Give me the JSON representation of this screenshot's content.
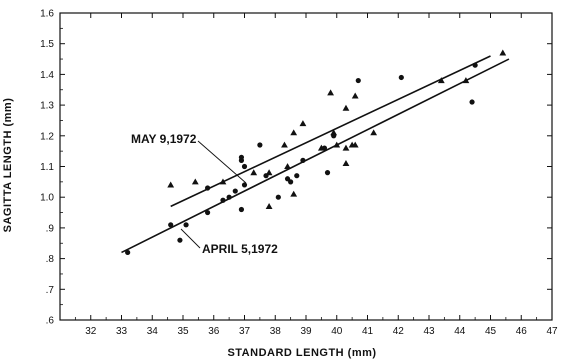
{
  "chart_data": {
    "type": "scatter",
    "title": "",
    "xlabel": "STANDARD LENGTH (mm)",
    "ylabel": "SAGITTA LENGTH (mm)",
    "xlim": [
      31,
      47
    ],
    "ylim": [
      0.6,
      1.6
    ],
    "xticks": [
      32,
      33,
      34,
      35,
      36,
      37,
      38,
      39,
      40,
      41,
      42,
      43,
      44,
      45,
      46,
      47
    ],
    "yticks": [
      0.6,
      0.7,
      0.8,
      0.9,
      1.0,
      1.1,
      1.2,
      1.3,
      1.4,
      1.5,
      1.6
    ],
    "ytick_labels": [
      ".6",
      ".7",
      ".8",
      ".9",
      "1.0",
      "1.1",
      "1.2",
      "1.3",
      "1.4",
      "1.5",
      "1.6"
    ],
    "grid": false,
    "series": [
      {
        "name": "APRIL 5, 1972",
        "marker": "circle",
        "points": [
          [
            33.2,
            0.82
          ],
          [
            34.6,
            0.91
          ],
          [
            34.9,
            0.86
          ],
          [
            35.1,
            0.91
          ],
          [
            35.8,
            0.95
          ],
          [
            35.8,
            1.03
          ],
          [
            36.3,
            0.99
          ],
          [
            36.5,
            1.0
          ],
          [
            36.7,
            1.02
          ],
          [
            36.9,
            0.96
          ],
          [
            36.9,
            1.12
          ],
          [
            36.9,
            1.13
          ],
          [
            37.0,
            1.04
          ],
          [
            37.0,
            1.1
          ],
          [
            37.5,
            1.17
          ],
          [
            37.7,
            1.07
          ],
          [
            38.1,
            1.0
          ],
          [
            38.4,
            1.06
          ],
          [
            38.5,
            1.05
          ],
          [
            38.7,
            1.07
          ],
          [
            38.9,
            1.12
          ],
          [
            39.6,
            1.16
          ],
          [
            39.7,
            1.08
          ],
          [
            39.9,
            1.2
          ],
          [
            40.7,
            1.38
          ],
          [
            42.1,
            1.39
          ],
          [
            44.4,
            1.31
          ],
          [
            44.5,
            1.43
          ]
        ],
        "fit": [
          [
            33.0,
            0.82
          ],
          [
            45.6,
            1.45
          ]
        ]
      },
      {
        "name": "MAY 9, 1972",
        "marker": "triangle",
        "points": [
          [
            34.6,
            1.04
          ],
          [
            35.4,
            1.05
          ],
          [
            36.3,
            1.05
          ],
          [
            37.3,
            1.08
          ],
          [
            37.8,
            1.08
          ],
          [
            37.8,
            0.97
          ],
          [
            38.3,
            1.17
          ],
          [
            38.4,
            1.1
          ],
          [
            38.6,
            1.21
          ],
          [
            38.6,
            1.01
          ],
          [
            38.9,
            1.24
          ],
          [
            39.5,
            1.16
          ],
          [
            39.8,
            1.34
          ],
          [
            39.9,
            1.21
          ],
          [
            40.0,
            1.17
          ],
          [
            40.3,
            1.16
          ],
          [
            40.3,
            1.11
          ],
          [
            40.3,
            1.29
          ],
          [
            40.5,
            1.17
          ],
          [
            40.6,
            1.17
          ],
          [
            40.6,
            1.33
          ],
          [
            41.2,
            1.21
          ],
          [
            43.4,
            1.38
          ],
          [
            44.2,
            1.38
          ],
          [
            45.4,
            1.47
          ]
        ],
        "fit": [
          [
            34.6,
            0.97
          ],
          [
            45.0,
            1.46
          ]
        ]
      }
    ],
    "annotations": [
      {
        "text": "MAY 9,1972",
        "series": "MAY 9, 1972"
      },
      {
        "text": "APRIL 5,1972",
        "series": "APRIL 5, 1972"
      }
    ]
  }
}
